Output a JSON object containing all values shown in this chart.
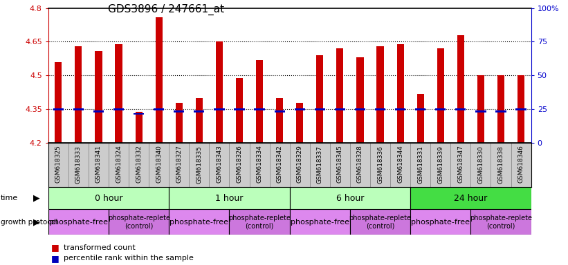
{
  "title": "GDS3896 / 247661_at",
  "samples": [
    "GSM618325",
    "GSM618333",
    "GSM618341",
    "GSM618324",
    "GSM618332",
    "GSM618340",
    "GSM618327",
    "GSM618335",
    "GSM618343",
    "GSM618326",
    "GSM618334",
    "GSM618342",
    "GSM618329",
    "GSM618337",
    "GSM618345",
    "GSM618328",
    "GSM618336",
    "GSM618344",
    "GSM618331",
    "GSM618339",
    "GSM618347",
    "GSM618330",
    "GSM618338",
    "GSM618346"
  ],
  "bar_values": [
    4.56,
    4.63,
    4.61,
    4.64,
    4.34,
    4.76,
    4.38,
    4.4,
    4.65,
    4.49,
    4.57,
    4.4,
    4.38,
    4.59,
    4.62,
    4.58,
    4.63,
    4.64,
    4.42,
    4.62,
    4.68,
    4.5,
    4.5,
    4.5
  ],
  "percentile_values": [
    4.35,
    4.35,
    4.34,
    4.35,
    4.33,
    4.35,
    4.34,
    4.34,
    4.35,
    4.35,
    4.35,
    4.34,
    4.35,
    4.35,
    4.35,
    4.35,
    4.35,
    4.35,
    4.35,
    4.35,
    4.35,
    4.34,
    4.34,
    4.35
  ],
  "bar_color": "#cc0000",
  "percentile_color": "#0000bb",
  "ymin": 4.2,
  "ymax": 4.8,
  "yticks": [
    4.2,
    4.35,
    4.5,
    4.65,
    4.8
  ],
  "ytick_labels": [
    "4.2",
    "4.35",
    "4.5",
    "4.65",
    "4.8"
  ],
  "right_yticks": [
    0,
    25,
    50,
    75,
    100
  ],
  "right_ytick_labels": [
    "0",
    "25",
    "50",
    "75",
    "100%"
  ],
  "hlines": [
    4.35,
    4.5,
    4.65
  ],
  "time_groups": [
    {
      "label": "0 hour",
      "start": 0,
      "end": 6,
      "color": "#bbffbb"
    },
    {
      "label": "1 hour",
      "start": 6,
      "end": 12,
      "color": "#bbffbb"
    },
    {
      "label": "6 hour",
      "start": 12,
      "end": 18,
      "color": "#bbffbb"
    },
    {
      "label": "24 hour",
      "start": 18,
      "end": 24,
      "color": "#44dd44"
    }
  ],
  "protocol_groups": [
    {
      "label": "phosphate-free",
      "start": 0,
      "end": 3,
      "color": "#dd88ee",
      "fontsize": 8
    },
    {
      "label": "phosphate-replete\n(control)",
      "start": 3,
      "end": 6,
      "color": "#cc77dd",
      "fontsize": 7
    },
    {
      "label": "phosphate-free",
      "start": 6,
      "end": 9,
      "color": "#dd88ee",
      "fontsize": 8
    },
    {
      "label": "phosphate-replete\n(control)",
      "start": 9,
      "end": 12,
      "color": "#cc77dd",
      "fontsize": 7
    },
    {
      "label": "phosphate-free",
      "start": 12,
      "end": 15,
      "color": "#dd88ee",
      "fontsize": 8
    },
    {
      "label": "phosphate-replete\n(control)",
      "start": 15,
      "end": 18,
      "color": "#cc77dd",
      "fontsize": 7
    },
    {
      "label": "phosphate-free",
      "start": 18,
      "end": 21,
      "color": "#dd88ee",
      "fontsize": 8
    },
    {
      "label": "phosphate-replete\n(control)",
      "start": 21,
      "end": 24,
      "color": "#cc77dd",
      "fontsize": 7
    }
  ],
  "background_color": "#ffffff",
  "plot_bg": "#ffffff",
  "xtick_bg": "#cccccc",
  "bar_width": 0.35
}
